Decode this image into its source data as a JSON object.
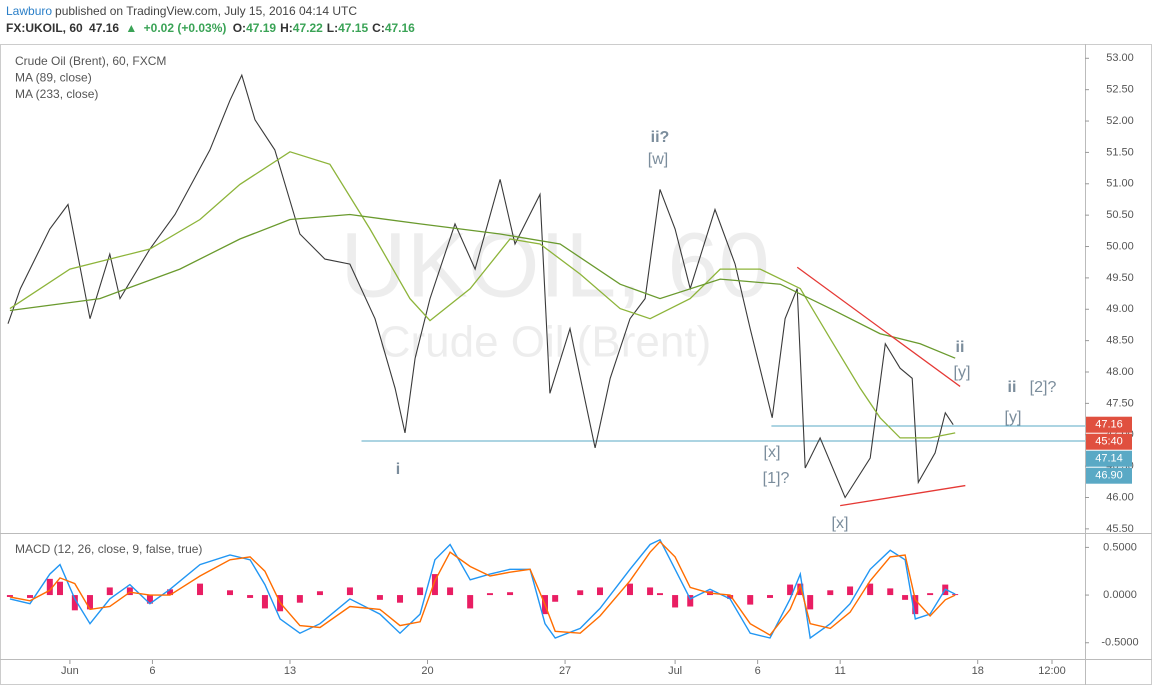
{
  "header": {
    "author": "Lawburo",
    "published": "published on TradingView.com, July 15, 2016 04:14 UTC",
    "symbol": "FX:UKOIL, 60",
    "last": 47.16,
    "arrow": "▲",
    "change": "+0.02 (+0.03%)",
    "ohlc": [
      {
        "label": "O:",
        "value": 47.19
      },
      {
        "label": "H:",
        "value": 47.22
      },
      {
        "label": "L:",
        "value": 47.15
      },
      {
        "label": "C:",
        "value": 47.16
      }
    ]
  },
  "chart_data": [
    {
      "type": "line",
      "watermark": "UKOIL, 60",
      "watermark_sub": "Crude Oil (Brent)",
      "xlim": [
        -2.25,
        36.9
      ],
      "xticks": [
        {
          "value": 0,
          "label": "Jun"
        },
        {
          "value": 3,
          "label": "6"
        },
        {
          "value": 8,
          "label": "13"
        },
        {
          "value": 13,
          "label": "20"
        },
        {
          "value": 18,
          "label": "27"
        },
        {
          "value": 22,
          "label": "Jul"
        },
        {
          "value": 25,
          "label": "6"
        },
        {
          "value": 28,
          "label": "11"
        },
        {
          "value": 33,
          "label": "18"
        },
        {
          "value": 35.7,
          "label": "12:00"
        }
      ],
      "ylim": [
        45.45,
        53.18
      ],
      "yticks": [
        {
          "value": 53,
          "label": "53.00"
        },
        {
          "value": 52.5,
          "label": "52.50"
        },
        {
          "value": 52,
          "label": "52.00"
        },
        {
          "value": 51.5,
          "label": "51.50"
        },
        {
          "value": 51,
          "label": "51.00"
        },
        {
          "value": 50.5,
          "label": "50.50"
        },
        {
          "value": 50,
          "label": "50.00"
        },
        {
          "value": 49.5,
          "label": "49.50"
        },
        {
          "value": 49,
          "label": "49.00"
        },
        {
          "value": 48.5,
          "label": "48.50"
        },
        {
          "value": 48,
          "label": "48.00"
        },
        {
          "value": 47.5,
          "label": "47.50"
        },
        {
          "value": 47,
          "label": "47.00"
        },
        {
          "value": 46.5,
          "label": "46.50"
        },
        {
          "value": 46,
          "label": "46.00"
        },
        {
          "value": 45.5,
          "label": "45.50"
        }
      ],
      "series": [
        {
          "name": "Crude Oil (Brent), 60, FXCM",
          "color": "#3a3a3a",
          "x": [
            -2.25,
            -1.8,
            -0.73,
            -0.07,
            0.73,
            1.45,
            1.82,
            2.91,
            3.82,
            5.09,
            5.82,
            6.25,
            6.73,
            7.45,
            8.36,
            9.27,
            10.18,
            11.09,
            11.82,
            12.18,
            12.55,
            13.09,
            14.0,
            14.73,
            15.64,
            16.18,
            17.09,
            17.45,
            18.18,
            19.09,
            19.64,
            20.36,
            20.91,
            21.45,
            22.0,
            22.55,
            23.45,
            24.18,
            24.73,
            25.53,
            26.0,
            26.44,
            26.73,
            27.27,
            28.18,
            29.09,
            29.64,
            30.18,
            30.62,
            30.84,
            31.45,
            31.82,
            32.11
          ],
          "values": [
            48.77,
            49.33,
            50.28,
            50.67,
            48.85,
            49.88,
            49.17,
            49.96,
            50.51,
            51.54,
            52.33,
            52.73,
            52.02,
            51.54,
            50.2,
            49.8,
            49.72,
            48.85,
            47.74,
            47.03,
            48.22,
            49.17,
            50.36,
            49.64,
            51.07,
            50.04,
            50.83,
            47.66,
            48.69,
            46.79,
            47.9,
            48.85,
            49.17,
            50.91,
            50.28,
            49.33,
            50.59,
            49.72,
            48.69,
            47.27,
            48.85,
            49.33,
            46.47,
            46.95,
            46.0,
            46.63,
            48.45,
            48.06,
            47.9,
            46.24,
            46.71,
            47.35,
            47.16
          ]
        },
        {
          "name": "MA (89, close)",
          "color": "#8db43a",
          "x": [
            -2.18,
            0,
            2.91,
            4.73,
            6.18,
            8.0,
            9.45,
            10.91,
            12.36,
            13.09,
            14.55,
            16.0,
            17.09,
            18.55,
            20.0,
            21.09,
            22.55,
            23.64,
            25.09,
            26.55,
            27.64,
            28.73,
            29.45,
            30.18,
            31.27,
            32.18
          ],
          "values": [
            49.01,
            49.64,
            49.96,
            50.43,
            50.99,
            51.51,
            51.31,
            50.28,
            49.17,
            48.82,
            49.33,
            50.12,
            50.04,
            49.56,
            49.01,
            48.85,
            49.17,
            49.64,
            49.64,
            49.33,
            48.53,
            47.74,
            47.27,
            46.95,
            46.95,
            47.03
          ]
        },
        {
          "name": "MA (233, close)",
          "color": "#6a9a2e",
          "x": [
            -2.18,
            1.09,
            4.0,
            6.18,
            8.0,
            10.18,
            12.73,
            15.64,
            17.82,
            20.0,
            21.45,
            23.64,
            25.82,
            27.64,
            29.45,
            30.91,
            32.18
          ],
          "values": [
            48.98,
            49.17,
            49.64,
            50.12,
            50.43,
            50.51,
            50.36,
            50.2,
            50.04,
            49.4,
            49.17,
            49.48,
            49.4,
            49.01,
            48.61,
            48.45,
            48.22
          ]
        }
      ],
      "price_tags": [
        {
          "value": 47.16,
          "label": "47.16",
          "color": "#e0503f"
        },
        {
          "label": "45:40",
          "color": "#e0503f"
        }
      ],
      "hlines": [
        {
          "value": 47.14,
          "label": "47.14",
          "from": 25.5,
          "color": "#5aa9c5"
        },
        {
          "value": 46.9,
          "label": "46.90",
          "from": 10.6,
          "color": "#5aa9c5"
        }
      ],
      "trendlines": [
        {
          "color": "#e53935",
          "points": [
            [
              26.44,
              49.67
            ],
            [
              32.36,
              47.77
            ]
          ]
        },
        {
          "color": "#e53935",
          "points": [
            [
              28.0,
              45.87
            ],
            [
              32.55,
              46.19
            ]
          ]
        }
      ],
      "wave_labels": [
        "i",
        "ii?",
        "[w]",
        "[x]",
        "[1]?",
        "[x]",
        "ii",
        "[y]",
        "ii",
        "[2]?",
        "[y]"
      ]
    },
    {
      "type": "macd",
      "legend": "MACD (12, 26, close, 9, false, true)",
      "xlim": [
        -2.25,
        36.9
      ],
      "ylim": [
        -0.66,
        0.63
      ],
      "yticks": [
        {
          "value": 0.5,
          "label": "0.5000"
        },
        {
          "value": 0,
          "label": "0.0000"
        },
        {
          "value": -0.5,
          "label": "-0.5000"
        }
      ],
      "x": [
        -2.18,
        -1.45,
        -0.73,
        -0.36,
        0.18,
        0.73,
        1.45,
        2.18,
        2.91,
        3.64,
        4.73,
        5.82,
        6.55,
        7.09,
        7.64,
        8.36,
        9.09,
        10.18,
        11.27,
        12.0,
        12.73,
        13.27,
        13.82,
        14.55,
        15.27,
        16.0,
        16.73,
        17.27,
        17.64,
        18.55,
        19.27,
        20.36,
        21.09,
        21.45,
        22.0,
        22.55,
        23.27,
        24.0,
        24.73,
        25.45,
        26.18,
        26.55,
        26.91,
        27.64,
        28.36,
        29.09,
        29.82,
        30.36,
        30.73,
        31.27,
        31.82,
        32.18
      ],
      "series": [
        {
          "color": "#2196f3",
          "values": [
            -0.04,
            -0.09,
            0.22,
            0.32,
            -0.04,
            -0.3,
            -0.04,
            0.11,
            -0.09,
            0.06,
            0.32,
            0.42,
            0.37,
            0.11,
            -0.25,
            -0.4,
            -0.3,
            -0.04,
            -0.2,
            -0.4,
            -0.2,
            0.37,
            0.53,
            0.16,
            0.22,
            0.27,
            0.27,
            -0.3,
            -0.45,
            -0.35,
            -0.14,
            0.27,
            0.53,
            0.58,
            0.27,
            -0.04,
            0.06,
            -0.04,
            -0.4,
            -0.45,
            -0.04,
            0.22,
            -0.45,
            -0.3,
            -0.09,
            0.27,
            0.47,
            0.37,
            -0.25,
            -0.2,
            0.06,
            0.01
          ]
        },
        {
          "color": "#ff6d00",
          "values": [
            -0.02,
            -0.06,
            0.05,
            0.18,
            0.12,
            -0.15,
            -0.12,
            0.03,
            0.0,
            0.0,
            0.2,
            0.37,
            0.4,
            0.25,
            -0.08,
            -0.32,
            -0.34,
            -0.12,
            -0.15,
            -0.32,
            -0.28,
            0.15,
            0.45,
            0.3,
            0.2,
            0.24,
            0.27,
            -0.1,
            -0.38,
            -0.4,
            -0.22,
            0.15,
            0.45,
            0.56,
            0.4,
            0.08,
            0.02,
            0.0,
            -0.3,
            -0.42,
            -0.15,
            0.1,
            -0.3,
            -0.35,
            -0.18,
            0.15,
            0.4,
            0.42,
            -0.05,
            -0.22,
            -0.05,
            0.0
          ]
        }
      ],
      "histogram": {
        "color": "#e91e63",
        "values": [
          -0.02,
          -0.03,
          0.17,
          0.14,
          -0.16,
          -0.15,
          0.08,
          0.08,
          -0.09,
          0.06,
          0.12,
          0.05,
          -0.03,
          -0.14,
          -0.17,
          -0.08,
          0.04,
          0.08,
          -0.05,
          -0.08,
          0.08,
          0.22,
          0.08,
          -0.14,
          0.02,
          0.03,
          0.0,
          -0.2,
          -0.07,
          0.05,
          0.08,
          0.12,
          0.08,
          0.02,
          -0.13,
          -0.12,
          0.04,
          -0.04,
          -0.1,
          -0.03,
          0.11,
          0.12,
          -0.15,
          0.05,
          0.09,
          0.12,
          0.07,
          -0.05,
          -0.2,
          0.02,
          0.11,
          0.01
        ]
      }
    }
  ]
}
